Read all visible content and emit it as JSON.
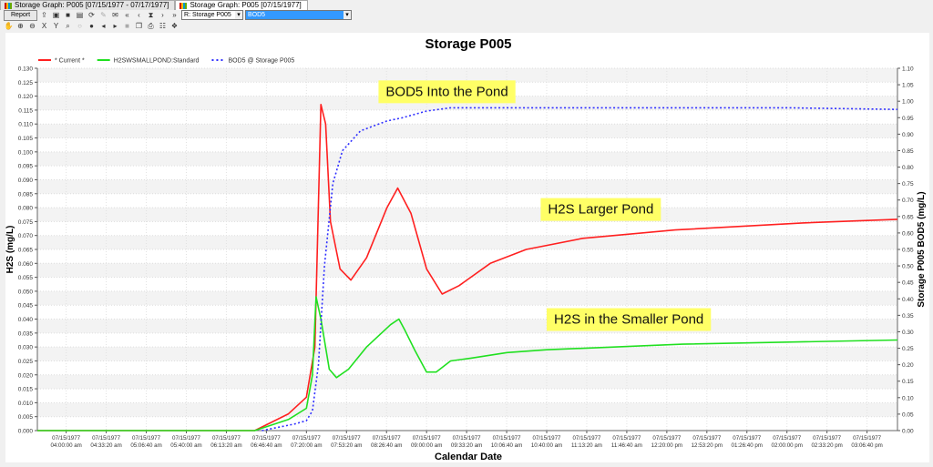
{
  "tabs": [
    {
      "label": "Storage Graph: P005 [07/15/1977 - 07/17/1977]"
    },
    {
      "label": "Storage Graph: P005 [07/15/1977]"
    }
  ],
  "toolbar": {
    "report_label": "Report",
    "location_select": "R: Storage P005",
    "parameter_select": "BOD5"
  },
  "chart_data": {
    "type": "line",
    "title": "Storage P005",
    "xlabel": "Calendar Date",
    "ylabel": "H2S (mg/L)",
    "y2label": "Storage P005 BOD5 (mg/L)",
    "x_units": "minutes after 07/15/1977 04:00:00 am",
    "xlim": [
      -24,
      692
    ],
    "ylim": [
      0,
      0.13
    ],
    "y2lim": [
      0,
      1.1
    ],
    "yticks": [
      "0.000",
      "0.005",
      "0.010",
      "0.015",
      "0.020",
      "0.025",
      "0.030",
      "0.035",
      "0.040",
      "0.045",
      "0.050",
      "0.055",
      "0.060",
      "0.065",
      "0.070",
      "0.075",
      "0.080",
      "0.085",
      "0.090",
      "0.095",
      "0.100",
      "0.105",
      "0.110",
      "0.115",
      "0.120",
      "0.125",
      "0.130"
    ],
    "y2ticks": [
      "0.00",
      "0.05",
      "0.10",
      "0.15",
      "0.20",
      "0.25",
      "0.30",
      "0.35",
      "0.40",
      "0.45",
      "0.50",
      "0.55",
      "0.60",
      "0.65",
      "0.70",
      "0.75",
      "0.80",
      "0.85",
      "0.90",
      "0.95",
      "1.00",
      "1.05",
      "1.10"
    ],
    "xticks": [
      {
        "date": "07/15/1977",
        "time": "04:00:00 am"
      },
      {
        "date": "07/15/1977",
        "time": "04:33:20 am"
      },
      {
        "date": "07/15/1977",
        "time": "05:06:40 am"
      },
      {
        "date": "07/15/1977",
        "time": "05:40:00 am"
      },
      {
        "date": "07/15/1977",
        "time": "06:13:20 am"
      },
      {
        "date": "07/15/1977",
        "time": "06:46:40 am"
      },
      {
        "date": "07/15/1977",
        "time": "07:20:00 am"
      },
      {
        "date": "07/15/1977",
        "time": "07:53:20 am"
      },
      {
        "date": "07/15/1977",
        "time": "08:26:40 am"
      },
      {
        "date": "07/15/1977",
        "time": "09:00:00 am"
      },
      {
        "date": "07/15/1977",
        "time": "09:33:20 am"
      },
      {
        "date": "07/15/1977",
        "time": "10:06:40 am"
      },
      {
        "date": "07/15/1977",
        "time": "10:40:00 am"
      },
      {
        "date": "07/15/1977",
        "time": "11:13:20 am"
      },
      {
        "date": "07/15/1977",
        "time": "11:46:40 am"
      },
      {
        "date": "07/15/1977",
        "time": "12:20:00 pm"
      },
      {
        "date": "07/15/1977",
        "time": "12:53:20 pm"
      },
      {
        "date": "07/15/1977",
        "time": "01:26:40 pm"
      },
      {
        "date": "07/15/1977",
        "time": "02:00:00 pm"
      },
      {
        "date": "07/15/1977",
        "time": "02:33:20 pm"
      },
      {
        "date": "07/15/1977",
        "time": "03:06:40 pm"
      }
    ],
    "legend_position": "top-left",
    "series": [
      {
        "name": "* Current *",
        "color": "#ff2020",
        "axis": "left",
        "dash": false,
        "points": [
          [
            -24,
            0
          ],
          [
            157,
            0
          ],
          [
            185,
            0.006
          ],
          [
            200,
            0.012
          ],
          [
            207,
            0.03
          ],
          [
            212,
            0.117
          ],
          [
            216,
            0.11
          ],
          [
            220,
            0.075
          ],
          [
            228,
            0.058
          ],
          [
            237,
            0.054
          ],
          [
            250,
            0.062
          ],
          [
            267,
            0.08
          ],
          [
            276,
            0.087
          ],
          [
            287,
            0.078
          ],
          [
            300,
            0.058
          ],
          [
            313,
            0.049
          ],
          [
            327,
            0.052
          ],
          [
            353,
            0.06
          ],
          [
            383,
            0.065
          ],
          [
            430,
            0.069
          ],
          [
            507,
            0.072
          ],
          [
            613,
            0.0745
          ],
          [
            692,
            0.0758
          ]
        ]
      },
      {
        "name": "H2SWSMALLPOND:Standard",
        "color": "#20e020",
        "axis": "left",
        "dash": false,
        "points": [
          [
            -24,
            0
          ],
          [
            157,
            0
          ],
          [
            185,
            0.004
          ],
          [
            200,
            0.008
          ],
          [
            205,
            0.02
          ],
          [
            208,
            0.048
          ],
          [
            212,
            0.04
          ],
          [
            219,
            0.022
          ],
          [
            225,
            0.019
          ],
          [
            235,
            0.022
          ],
          [
            250,
            0.03
          ],
          [
            270,
            0.038
          ],
          [
            277,
            0.04
          ],
          [
            282,
            0.036
          ],
          [
            290,
            0.029
          ],
          [
            300,
            0.021
          ],
          [
            308,
            0.021
          ],
          [
            320,
            0.025
          ],
          [
            337,
            0.026
          ],
          [
            367,
            0.028
          ],
          [
            400,
            0.029
          ],
          [
            513,
            0.031
          ],
          [
            692,
            0.0325
          ]
        ]
      },
      {
        "name": "BOD5 @ Storage P005",
        "color": "#3030ff",
        "axis": "right",
        "dash": true,
        "points": [
          [
            163,
            0
          ],
          [
            190,
            0.02
          ],
          [
            200,
            0.03
          ],
          [
            205,
            0.06
          ],
          [
            210,
            0.2
          ],
          [
            215,
            0.5
          ],
          [
            222,
            0.75
          ],
          [
            230,
            0.85
          ],
          [
            245,
            0.91
          ],
          [
            267,
            0.94
          ],
          [
            280,
            0.95
          ],
          [
            300,
            0.97
          ],
          [
            320,
            0.98
          ],
          [
            600,
            0.98
          ],
          [
            692,
            0.975
          ]
        ]
      }
    ],
    "annotations": [
      {
        "text": "BOD5 Into the Pond",
        "x": 260,
        "y2": 1.03
      },
      {
        "text": "H2S Larger Pond",
        "x": 395,
        "y": 0.0795
      },
      {
        "text": "H2S in the Smaller Pond",
        "x": 400,
        "y": 0.04
      }
    ]
  }
}
